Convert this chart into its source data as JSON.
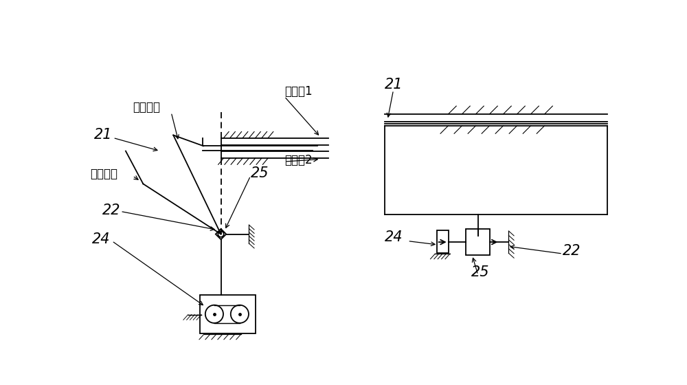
{
  "bg_color": "#ffffff",
  "line_color": "#000000",
  "fig_width": 10.0,
  "fig_height": 5.6,
  "dpi": 100,
  "labels": {
    "obstacle1": "障碍物1",
    "obstacle2": "障碍物2",
    "work_pos": "工作位置",
    "init_pos": "初始位置",
    "num21_left": "21",
    "num22_left": "22",
    "num24_left": "24",
    "num25_left": "25",
    "num21_right": "21",
    "num22_right": "22",
    "num24_right": "24",
    "num25_right": "25"
  },
  "font_size": 12
}
